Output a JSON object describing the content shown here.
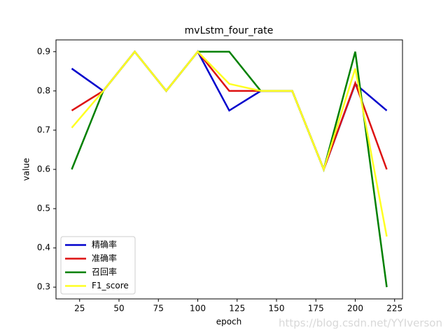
{
  "chart_data": {
    "type": "line",
    "title": "mvLstm_four_rate",
    "x_label": "epoch",
    "y_label": "value",
    "x": [
      20,
      40,
      60,
      80,
      100,
      120,
      140,
      160,
      180,
      200,
      220
    ],
    "series": [
      {
        "name": "精确率",
        "color": "#0000cc",
        "values": [
          0.857,
          0.8,
          0.9,
          0.8,
          0.9,
          0.75,
          0.8,
          0.8,
          0.6,
          0.818,
          0.75
        ]
      },
      {
        "name": "准确率",
        "color": "#dd1111",
        "values": [
          0.75,
          0.8,
          0.9,
          0.8,
          0.9,
          0.8,
          0.8,
          0.8,
          0.6,
          0.82,
          0.6
        ]
      },
      {
        "name": "召回率",
        "color": "#008000",
        "values": [
          0.6,
          0.8,
          0.9,
          0.8,
          0.9,
          0.9,
          0.8,
          0.8,
          0.6,
          0.9,
          0.3
        ]
      },
      {
        "name": "F1_score",
        "color": "#ffff22",
        "values": [
          0.706,
          0.8,
          0.9,
          0.8,
          0.9,
          0.818,
          0.8,
          0.8,
          0.6,
          0.857,
          0.429
        ]
      }
    ],
    "xlim": [
      10,
      230
    ],
    "ylim": [
      0.27,
      0.93
    ],
    "xticks": [
      25,
      50,
      75,
      100,
      125,
      150,
      175,
      200,
      225
    ],
    "yticks": [
      0.3,
      0.4,
      0.5,
      0.6,
      0.7,
      0.8,
      0.9
    ],
    "legend": "lower left",
    "watermark": "https://blog.csdn.net/YYIverson"
  }
}
